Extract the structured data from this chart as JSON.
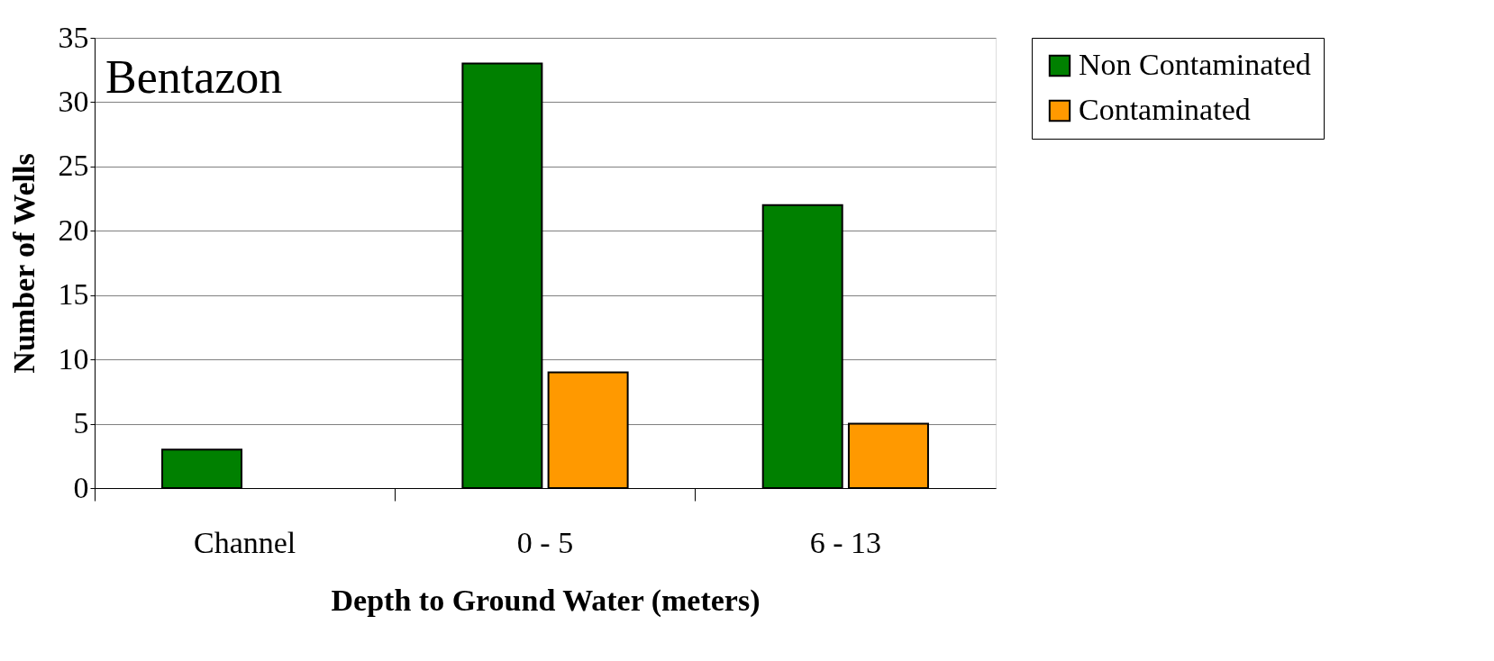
{
  "chart_data": {
    "type": "bar",
    "title": "Bentazon",
    "xlabel": "Depth to Ground Water (meters)",
    "ylabel": "Number of Wells",
    "categories": [
      "Channel",
      "0 - 5",
      "6 - 13"
    ],
    "series": [
      {
        "name": "Non Contaminated",
        "color": "#008000",
        "values": [
          3,
          33,
          22
        ]
      },
      {
        "name": "Contaminated",
        "color": "#ff9900",
        "values": [
          null,
          9,
          5
        ]
      }
    ],
    "ylim": [
      0,
      35
    ],
    "yticks": [
      0,
      5,
      10,
      15,
      20,
      25,
      30,
      35
    ],
    "grid": "y",
    "legend": "right"
  }
}
